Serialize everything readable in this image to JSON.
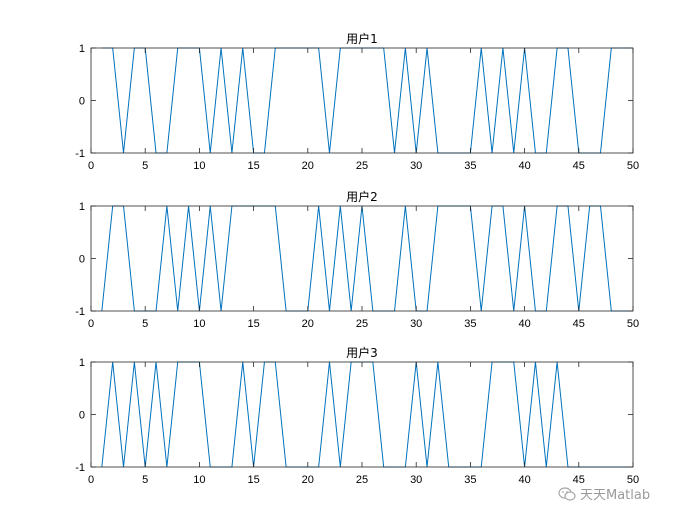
{
  "chart_data": [
    {
      "type": "line",
      "title": "用户1",
      "xlabel": "",
      "ylabel": "",
      "xlim": [
        0,
        50
      ],
      "ylim": [
        -1,
        1
      ],
      "xticks": [
        0,
        5,
        10,
        15,
        20,
        25,
        30,
        35,
        40,
        45,
        50
      ],
      "yticks": [
        -1,
        0,
        1
      ],
      "grid": false,
      "color": "#0072BD",
      "x": [
        1,
        2,
        3,
        4,
        5,
        6,
        7,
        8,
        9,
        10,
        11,
        12,
        13,
        14,
        15,
        16,
        17,
        18,
        19,
        20,
        21,
        22,
        23,
        24,
        25,
        26,
        27,
        28,
        29,
        30,
        31,
        32,
        33,
        34,
        35,
        36,
        37,
        38,
        39,
        40,
        41,
        42,
        43,
        44,
        45,
        46,
        47,
        48,
        49,
        50
      ],
      "values": [
        1,
        1,
        -1,
        1,
        1,
        -1,
        -1,
        1,
        1,
        1,
        -1,
        1,
        -1,
        1,
        -1,
        -1,
        1,
        1,
        1,
        1,
        1,
        -1,
        1,
        1,
        1,
        1,
        1,
        -1,
        1,
        -1,
        1,
        -1,
        -1,
        -1,
        -1,
        1,
        -1,
        1,
        -1,
        1,
        -1,
        -1,
        1,
        1,
        -1,
        -1,
        -1,
        1,
        1,
        1
      ]
    },
    {
      "type": "line",
      "title": "用户2",
      "xlabel": "",
      "ylabel": "",
      "xlim": [
        0,
        50
      ],
      "ylim": [
        -1,
        1
      ],
      "xticks": [
        0,
        5,
        10,
        15,
        20,
        25,
        30,
        35,
        40,
        45,
        50
      ],
      "yticks": [
        -1,
        0,
        1
      ],
      "grid": false,
      "color": "#0072BD",
      "x": [
        1,
        2,
        3,
        4,
        5,
        6,
        7,
        8,
        9,
        10,
        11,
        12,
        13,
        14,
        15,
        16,
        17,
        18,
        19,
        20,
        21,
        22,
        23,
        24,
        25,
        26,
        27,
        28,
        29,
        30,
        31,
        32,
        33,
        34,
        35,
        36,
        37,
        38,
        39,
        40,
        41,
        42,
        43,
        44,
        45,
        46,
        47,
        48,
        49,
        50
      ],
      "values": [
        -1,
        1,
        1,
        -1,
        -1,
        -1,
        1,
        -1,
        1,
        -1,
        1,
        -1,
        1,
        1,
        1,
        1,
        1,
        -1,
        -1,
        -1,
        1,
        -1,
        1,
        -1,
        1,
        -1,
        -1,
        -1,
        1,
        -1,
        -1,
        1,
        1,
        1,
        1,
        -1,
        1,
        1,
        -1,
        1,
        -1,
        -1,
        1,
        1,
        -1,
        1,
        1,
        -1,
        -1,
        -1
      ]
    },
    {
      "type": "line",
      "title": "用户3",
      "xlabel": "",
      "ylabel": "",
      "xlim": [
        0,
        50
      ],
      "ylim": [
        -1,
        1
      ],
      "xticks": [
        0,
        5,
        10,
        15,
        20,
        25,
        30,
        35,
        40,
        45,
        50
      ],
      "yticks": [
        -1,
        0,
        1
      ],
      "grid": false,
      "color": "#0072BD",
      "x": [
        1,
        2,
        3,
        4,
        5,
        6,
        7,
        8,
        9,
        10,
        11,
        12,
        13,
        14,
        15,
        16,
        17,
        18,
        19,
        20,
        21,
        22,
        23,
        24,
        25,
        26,
        27,
        28,
        29,
        30,
        31,
        32,
        33,
        34,
        35,
        36,
        37,
        38,
        39,
        40,
        41,
        42,
        43,
        44,
        45,
        46,
        47,
        48,
        49,
        50
      ],
      "values": [
        -1,
        1,
        -1,
        1,
        -1,
        1,
        -1,
        1,
        1,
        1,
        -1,
        -1,
        -1,
        1,
        -1,
        1,
        1,
        -1,
        -1,
        -1,
        -1,
        1,
        -1,
        1,
        1,
        1,
        -1,
        -1,
        -1,
        1,
        -1,
        1,
        -1,
        -1,
        -1,
        -1,
        1,
        1,
        1,
        -1,
        1,
        -1,
        1,
        -1,
        -1,
        -1,
        -1,
        -1,
        -1,
        -1
      ]
    }
  ],
  "watermark": {
    "text": "天天Matlab",
    "icon": "wechat-icon"
  }
}
